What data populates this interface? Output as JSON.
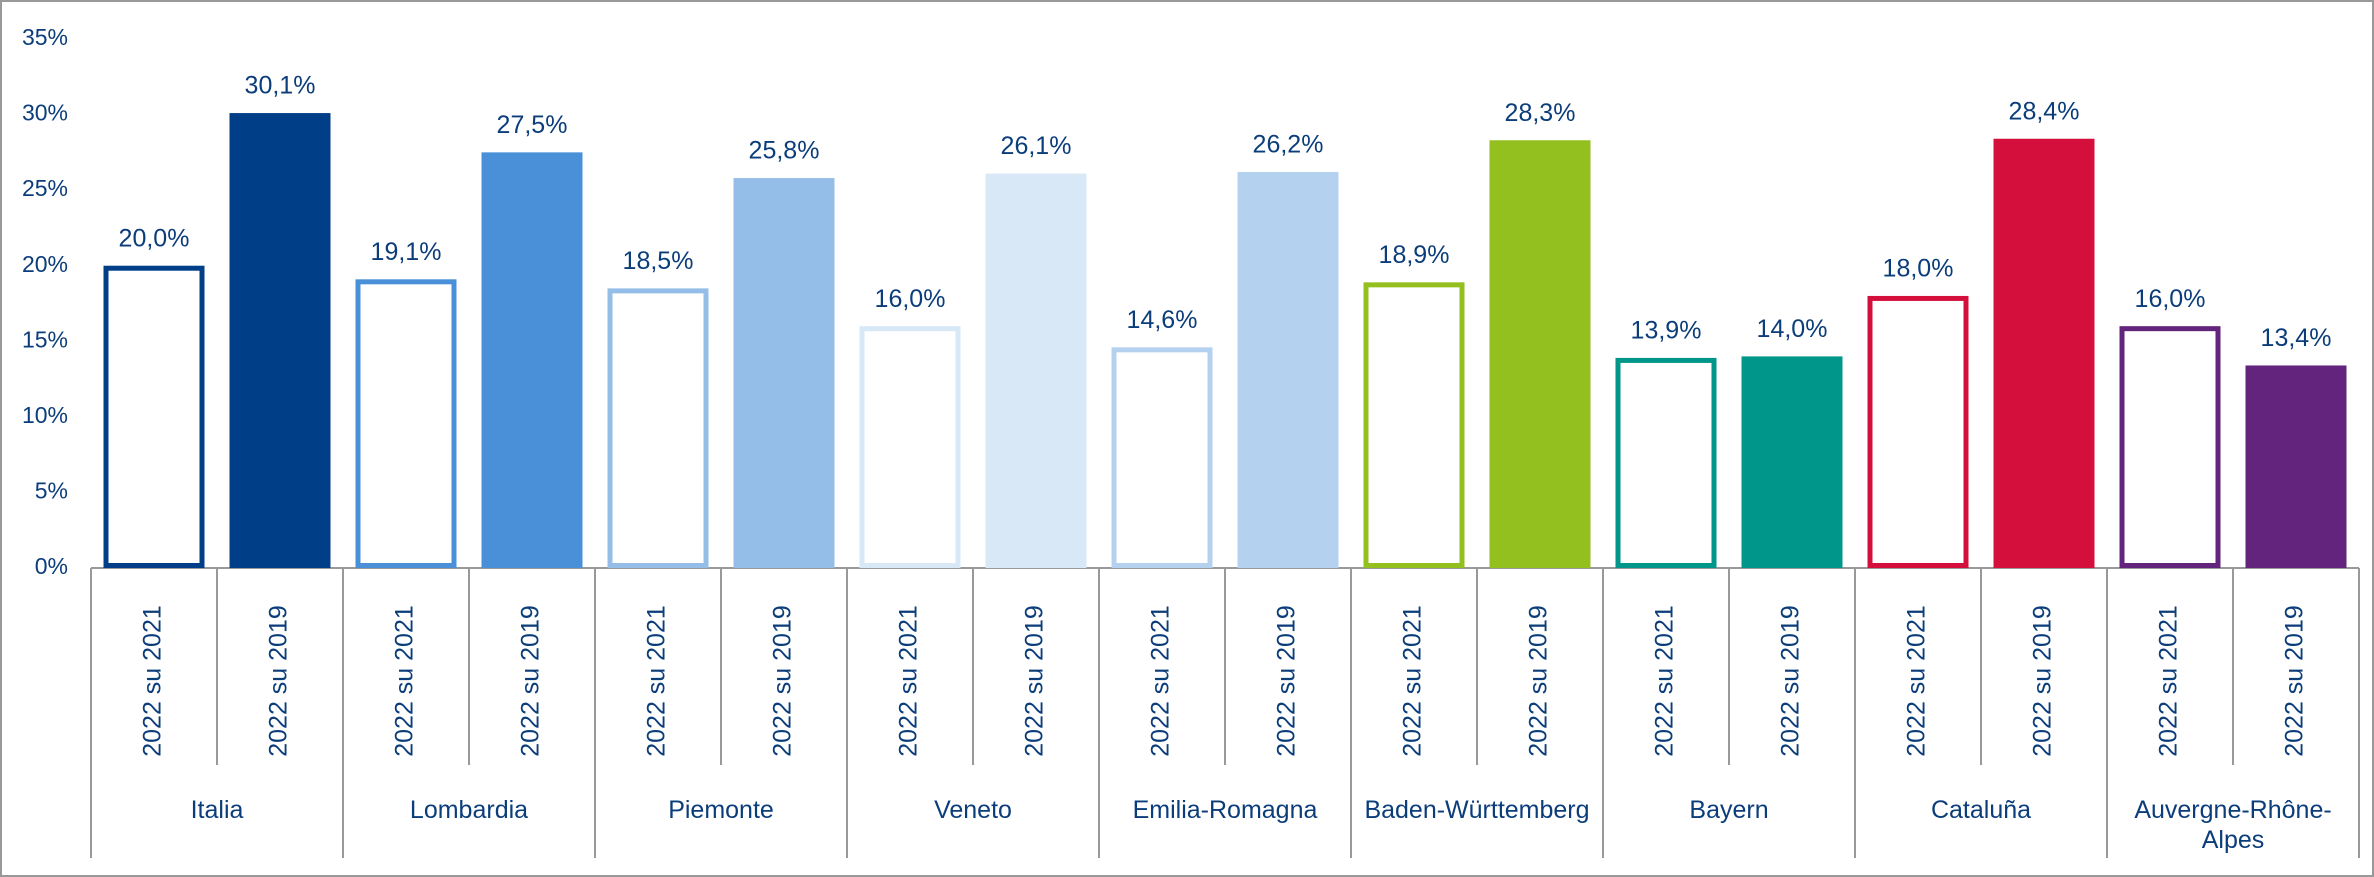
{
  "chart_data": {
    "type": "bar",
    "subcategories": [
      "2022 su 2021",
      "2022 su 2019"
    ],
    "bar_styles": [
      "outline",
      "fill"
    ],
    "groups": [
      {
        "name": "Italia",
        "color": "#003f87",
        "values": [
          20.0,
          30.1
        ],
        "value_labels": [
          "20,0%",
          "30,1%"
        ]
      },
      {
        "name": "Lombardia",
        "color": "#4a90d9",
        "values": [
          19.1,
          27.5
        ],
        "value_labels": [
          "19,1%",
          "27,5%"
        ]
      },
      {
        "name": "Piemonte",
        "color": "#94bde8",
        "values": [
          18.5,
          25.8
        ],
        "value_labels": [
          "18,5%",
          "25,8%"
        ]
      },
      {
        "name": "Veneto",
        "color": "#d9e8f7",
        "values": [
          16.0,
          26.1
        ],
        "value_labels": [
          "16,0%",
          "26,1%"
        ]
      },
      {
        "name": "Emilia-Romagna",
        "color": "#b5d1f0",
        "values": [
          14.6,
          26.2
        ],
        "value_labels": [
          "14,6%",
          "26,2%"
        ]
      },
      {
        "name": "Baden-Württemberg",
        "color": "#93bf1f",
        "values": [
          18.9,
          28.3
        ],
        "value_labels": [
          "18,9%",
          "28,3%"
        ]
      },
      {
        "name": "Bayern",
        "color": "#00968a",
        "values": [
          13.9,
          14.0
        ],
        "value_labels": [
          "13,9%",
          "14,0%"
        ]
      },
      {
        "name": "Cataluña",
        "color": "#d40f3c",
        "values": [
          18.0,
          28.4
        ],
        "value_labels": [
          "18,0%",
          "28,4%"
        ]
      },
      {
        "name": "Auvergne-Rhône-Alpes",
        "color": "#62247c",
        "values": [
          16.0,
          13.4
        ],
        "value_labels": [
          "16,0%",
          "13,4%"
        ]
      }
    ],
    "ylim": [
      0,
      35
    ],
    "yticks": [
      {
        "value": 0,
        "label": "0%"
      },
      {
        "value": 5,
        "label": "5%"
      },
      {
        "value": 10,
        "label": "10%"
      },
      {
        "value": 15,
        "label": "15%"
      },
      {
        "value": 20,
        "label": "20%"
      },
      {
        "value": 25,
        "label": "25%"
      },
      {
        "value": 30,
        "label": "30%"
      },
      {
        "value": 35,
        "label": "35%"
      }
    ]
  }
}
